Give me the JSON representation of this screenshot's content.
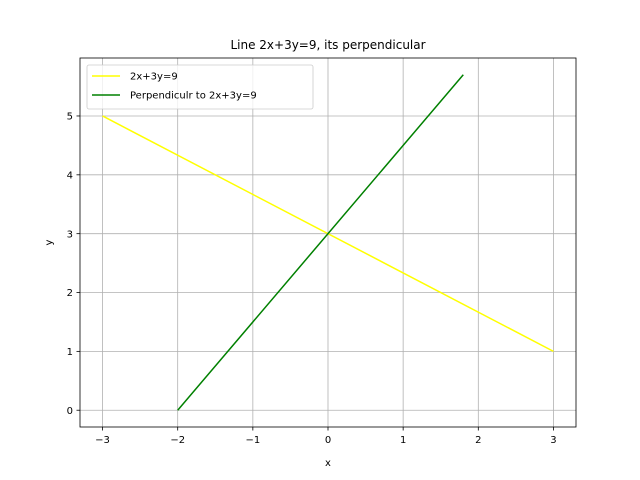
{
  "chart_data": {
    "type": "line",
    "title": "Line 2x+3y=9, its perpendicular",
    "xlabel": "x",
    "ylabel": "y",
    "xlim": [
      -3.3,
      3.3
    ],
    "ylim": [
      -0.285,
      5.985
    ],
    "xticks": [
      -3,
      -2,
      -1,
      0,
      1,
      2,
      3
    ],
    "yticks": [
      0,
      1,
      2,
      3,
      4,
      5
    ],
    "grid": true,
    "legend": "upper left",
    "series": [
      {
        "name": "2x+3y=9",
        "color": "#ffff00",
        "x": [
          -3,
          3
        ],
        "y": [
          5,
          1
        ]
      },
      {
        "name": "Perpendiculr to 2x+3y=9",
        "color": "#008000",
        "x": [
          -2,
          1.8
        ],
        "y": [
          0,
          5.7
        ]
      }
    ]
  }
}
